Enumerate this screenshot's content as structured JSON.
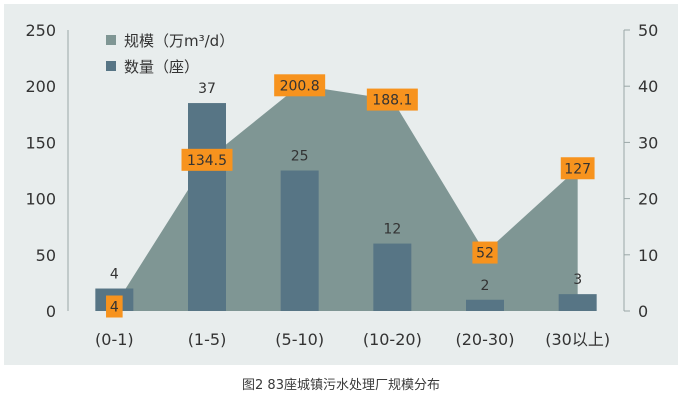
{
  "chart_data": {
    "type": "area",
    "categories": [
      "(0-1)",
      "(1-5)",
      "(5-10)",
      "(10-20)",
      "(20-30)",
      "(30以上)"
    ],
    "series": [
      {
        "name": "规模（万m³/d）",
        "type": "area",
        "axis": "left",
        "values": [
          4,
          134.5,
          200.8,
          188.1,
          52,
          127
        ],
        "labels": [
          "4",
          "134.5",
          "200.8",
          "188.1",
          "52",
          "127"
        ]
      },
      {
        "name": "数量（座）",
        "type": "bar",
        "axis": "right",
        "values": [
          4,
          37,
          25,
          12,
          2,
          3
        ],
        "labels": [
          "4",
          "37",
          "25",
          "12",
          "2",
          "3"
        ]
      }
    ],
    "left_axis": {
      "ylim": [
        0,
        250
      ],
      "ticks": [
        "0",
        "50",
        "100",
        "150",
        "200",
        "250"
      ]
    },
    "right_axis": {
      "ylim": [
        0,
        50
      ],
      "ticks": [
        "0",
        "10",
        "20",
        "30",
        "40",
        "50"
      ]
    },
    "legend_position": "top-left",
    "grid": false,
    "colors": {
      "plot_bg": "#e8eded",
      "area": "#7f9694",
      "bar": "#577585",
      "label_box": "#f7931e",
      "text": "#333333"
    }
  },
  "caption": "图2 83座城镇污水处理厂规模分布"
}
